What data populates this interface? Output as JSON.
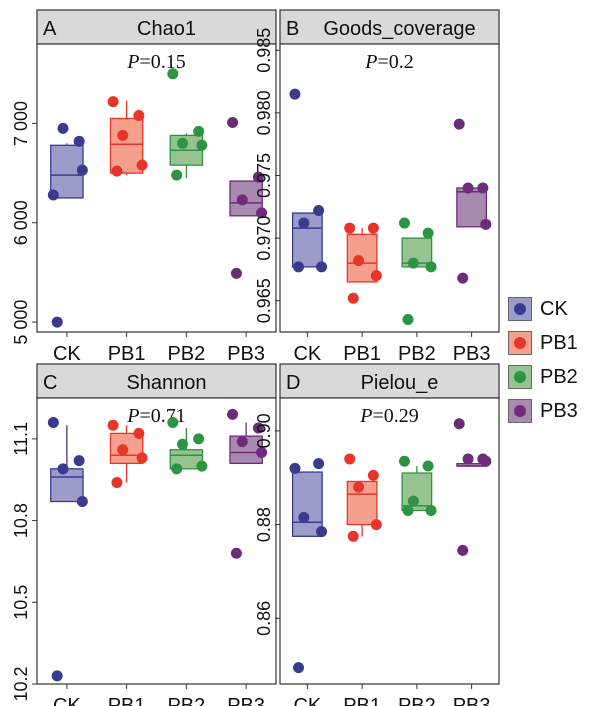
{
  "legend": {
    "items": [
      {
        "label": "CK",
        "fill": "#9c9ccb",
        "dot": "#3a3a8e"
      },
      {
        "label": "PB1",
        "fill": "#f4a08c",
        "dot": "#e8352b"
      },
      {
        "label": "PB2",
        "fill": "#96c38f",
        "dot": "#2e9444"
      },
      {
        "label": "PB3",
        "fill": "#a889b0",
        "dot": "#6e2b7a"
      }
    ]
  },
  "chart_data": [
    {
      "type": "boxplot",
      "panel_letter": "A",
      "title": "Chao1",
      "p_prefix": "P",
      "p_suffix": "=0.15",
      "categories": [
        "CK",
        "PB1",
        "PB2",
        "PB3"
      ],
      "ylim": [
        4900,
        7800
      ],
      "yticks": [
        5000,
        6000,
        7000
      ],
      "ytick_labels": [
        "5 000",
        "6 000",
        "7 000"
      ],
      "boxes": [
        {
          "q1": 6250,
          "median": 6480,
          "q3": 6780,
          "whisker_low": 6250,
          "whisker_high": 6800
        },
        {
          "q1": 6500,
          "median": 6790,
          "q3": 7050,
          "whisker_low": 6480,
          "whisker_high": 7230
        },
        {
          "q1": 6580,
          "median": 6730,
          "q3": 6880,
          "whisker_low": 6450,
          "whisker_high": 6900
        },
        {
          "q1": 6070,
          "median": 6200,
          "q3": 6420,
          "whisker_low": 6070,
          "whisker_high": 6420
        }
      ],
      "points": [
        [
          6280,
          6820,
          6950,
          6530,
          5000
        ],
        [
          7220,
          7080,
          6880,
          6580,
          6520
        ],
        [
          7500,
          6920,
          6800,
          6780,
          6480
        ],
        [
          7010,
          6460,
          6230,
          6100,
          5490
        ]
      ]
    },
    {
      "type": "boxplot",
      "panel_letter": "B",
      "title": "Goods_coverage",
      "p_prefix": "P",
      "p_suffix": "=0.2",
      "categories": [
        "CK",
        "PB1",
        "PB2",
        "PB3"
      ],
      "ylim": [
        0.9625,
        0.9855
      ],
      "yticks": [
        0.965,
        0.97,
        0.975,
        0.98,
        0.985
      ],
      "ytick_labels": [
        "0.965",
        "0.970",
        "0.975",
        "0.980",
        "0.985"
      ],
      "boxes": [
        {
          "q1": 0.9677,
          "median": 0.9708,
          "q3": 0.972,
          "whisker_low": 0.9677,
          "whisker_high": 0.972
        },
        {
          "q1": 0.9665,
          "median": 0.968,
          "q3": 0.9703,
          "whisker_low": 0.9665,
          "whisker_high": 0.9708
        },
        {
          "q1": 0.9677,
          "median": 0.968,
          "q3": 0.97,
          "whisker_low": 0.9677,
          "whisker_high": 0.97
        },
        {
          "q1": 0.9709,
          "median": 0.9737,
          "q3": 0.974,
          "whisker_low": 0.9709,
          "whisker_high": 0.974
        }
      ],
      "points": [
        [
          0.9815,
          0.9722,
          0.9712,
          0.9677,
          0.9677
        ],
        [
          0.9708,
          0.9708,
          0.9682,
          0.967,
          0.9652
        ],
        [
          0.9712,
          0.9704,
          0.968,
          0.9677,
          0.9635
        ],
        [
          0.9791,
          0.974,
          0.974,
          0.9711,
          0.9668
        ]
      ]
    },
    {
      "type": "boxplot",
      "panel_letter": "C",
      "title": "Shannon",
      "p_prefix": "P",
      "p_suffix": "=0.71",
      "categories": [
        "CK",
        "PB1",
        "PB2",
        "PB3"
      ],
      "ylim": [
        10.2,
        11.25
      ],
      "yticks": [
        10.2,
        10.5,
        10.8,
        11.1
      ],
      "ytick_labels": [
        "10.2",
        "10.5",
        "10.8",
        "11.1"
      ],
      "boxes": [
        {
          "q1": 10.87,
          "median": 10.96,
          "q3": 10.99,
          "whisker_low": 10.87,
          "whisker_high": 11.15
        },
        {
          "q1": 11.01,
          "median": 11.04,
          "q3": 11.12,
          "whisker_low": 10.94,
          "whisker_high": 11.15
        },
        {
          "q1": 10.99,
          "median": 11.04,
          "q3": 11.06,
          "whisker_low": 10.99,
          "whisker_high": 11.14
        },
        {
          "q1": 11.01,
          "median": 11.05,
          "q3": 11.11,
          "whisker_low": 11.01,
          "whisker_high": 11.16
        }
      ],
      "points": [
        [
          11.16,
          11.02,
          10.99,
          10.87,
          10.23
        ],
        [
          11.15,
          11.12,
          11.06,
          11.03,
          10.94
        ],
        [
          11.16,
          11.1,
          11.08,
          11.0,
          10.99
        ],
        [
          11.19,
          11.14,
          11.09,
          11.05,
          10.68
        ]
      ]
    },
    {
      "type": "boxplot",
      "panel_letter": "D",
      "title": "Pielou_e",
      "p_prefix": "P",
      "p_suffix": "=0.29",
      "categories": [
        "CK",
        "PB1",
        "PB2",
        "PB3"
      ],
      "ylim": [
        0.846,
        0.907
      ],
      "yticks": [
        0.86,
        0.88,
        0.9
      ],
      "ytick_labels": [
        "0.86",
        "0.88",
        "0.90"
      ],
      "boxes": [
        {
          "q1": 0.8775,
          "median": 0.8805,
          "q3": 0.8912,
          "whisker_low": 0.8775,
          "whisker_high": 0.8912
        },
        {
          "q1": 0.88,
          "median": 0.8865,
          "q3": 0.8892,
          "whisker_low": 0.8775,
          "whisker_high": 0.8892
        },
        {
          "q1": 0.883,
          "median": 0.884,
          "q3": 0.891,
          "whisker_low": 0.883,
          "whisker_high": 0.8925
        },
        {
          "q1": 0.8925,
          "median": 0.8925,
          "q3": 0.893,
          "whisker_low": 0.8925,
          "whisker_high": 0.893
        }
      ],
      "points": [
        [
          0.892,
          0.893,
          0.8815,
          0.8785,
          0.8495
        ],
        [
          0.894,
          0.8905,
          0.888,
          0.88,
          0.8775
        ],
        [
          0.8935,
          0.8925,
          0.885,
          0.883,
          0.883
        ],
        [
          0.9015,
          0.894,
          0.894,
          0.8935,
          0.8745
        ]
      ]
    }
  ]
}
